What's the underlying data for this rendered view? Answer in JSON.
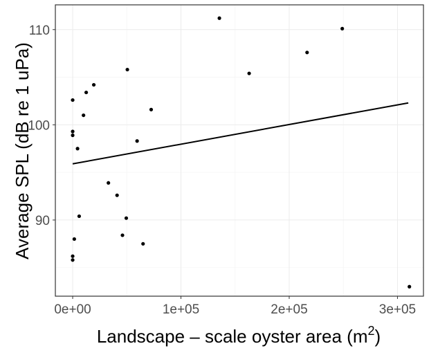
{
  "chart_data": {
    "type": "scatter",
    "title": "",
    "xlabel": "Landscape – scale oyster area",
    "xlabel_unit_base": "(m",
    "xlabel_unit_sup": "2",
    "xlabel_unit_close": ")",
    "ylabel": "Average SPL (dB re 1 uPa)",
    "xlim": [
      -16000,
      324000
    ],
    "ylim": [
      82,
      112.6
    ],
    "x_ticks": [
      0,
      100000,
      200000,
      300000
    ],
    "x_tick_labels": [
      "0e+00",
      "1e+05",
      "2e+05",
      "3e+05"
    ],
    "y_ticks": [
      90,
      100,
      110
    ],
    "y_tick_labels": [
      "90",
      "100",
      "110"
    ],
    "y_minor_ticks": [
      85,
      95,
      105
    ],
    "x_minor_ticks": [
      50000,
      150000,
      250000
    ],
    "grid": true,
    "colors": {
      "points": "#000000",
      "trend": "#000000",
      "grid_major": "#ebebeb",
      "grid_minor": "#f5f5f5",
      "panel_border": "#333333"
    },
    "points": [
      {
        "x": 0,
        "y": 102.6
      },
      {
        "x": 0,
        "y": 99.3
      },
      {
        "x": 0,
        "y": 98.9
      },
      {
        "x": 0,
        "y": 86.2
      },
      {
        "x": 0,
        "y": 85.8
      },
      {
        "x": 1500,
        "y": 88.0
      },
      {
        "x": 4500,
        "y": 97.5
      },
      {
        "x": 6000,
        "y": 90.4
      },
      {
        "x": 10000,
        "y": 101.0
      },
      {
        "x": 12500,
        "y": 103.4
      },
      {
        "x": 19500,
        "y": 104.2
      },
      {
        "x": 33000,
        "y": 93.9
      },
      {
        "x": 41000,
        "y": 92.6
      },
      {
        "x": 46000,
        "y": 88.4
      },
      {
        "x": 49500,
        "y": 90.2
      },
      {
        "x": 50500,
        "y": 105.8
      },
      {
        "x": 59500,
        "y": 98.3
      },
      {
        "x": 65000,
        "y": 87.5
      },
      {
        "x": 72500,
        "y": 101.6
      },
      {
        "x": 135500,
        "y": 111.2
      },
      {
        "x": 163000,
        "y": 105.4
      },
      {
        "x": 216500,
        "y": 107.6
      },
      {
        "x": 249000,
        "y": 110.1
      },
      {
        "x": 311000,
        "y": 83.0
      }
    ],
    "trend_line": {
      "x": [
        0,
        310000
      ],
      "y": [
        95.9,
        102.3
      ]
    }
  }
}
